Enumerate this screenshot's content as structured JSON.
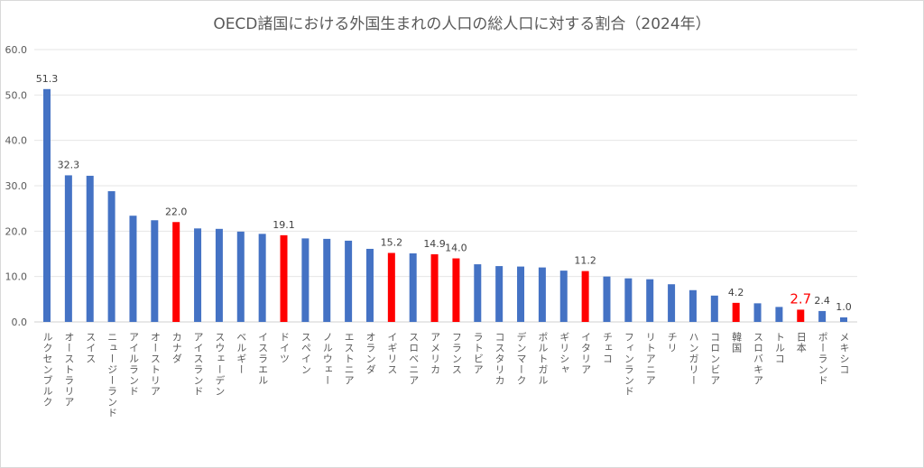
{
  "chart_data": {
    "type": "bar",
    "title": "OECD諸国における外国生まれの人口の総人口に対する割合（2024年）",
    "xlabel": "",
    "ylabel": "",
    "ylim": [
      0,
      60
    ],
    "yticks": [
      "0.0",
      "10.0",
      "20.0",
      "30.0",
      "40.0",
      "50.0",
      "60.0"
    ],
    "grid": true,
    "colors": {
      "default": "#4472C4",
      "highlight": "#FF0000",
      "japan_label": "#FF0000"
    },
    "categories": [
      "ルクセンブルク",
      "オーストラリア",
      "スイス",
      "ニュージーランド",
      "アイルランド",
      "オーストリア",
      "カナダ",
      "アイスランド",
      "スウェーデン",
      "ベルギー",
      "イスラエル",
      "ドイツ",
      "スペイン",
      "ノルウェー",
      "エストニア",
      "オランダ",
      "イギリス",
      "スロベニア",
      "アメリカ",
      "フランス",
      "ラトビア",
      "コスタリカ",
      "デンマーク",
      "ポルトガル",
      "ギリシャ",
      "イタリア",
      "チェコ",
      "フィンランド",
      "リトアニア",
      "チリ",
      "ハンガリー",
      "コロンビア",
      "韓国",
      "スロバキア",
      "トルコ",
      "日本",
      "ポーランド",
      "メキシコ"
    ],
    "values": [
      51.3,
      32.3,
      32.2,
      28.8,
      23.4,
      22.4,
      22.0,
      20.6,
      20.5,
      19.9,
      19.4,
      19.1,
      18.4,
      18.3,
      17.9,
      16.1,
      15.2,
      15.1,
      14.9,
      14.0,
      12.7,
      12.3,
      12.2,
      12.0,
      11.3,
      11.2,
      10.0,
      9.6,
      9.4,
      8.3,
      7.0,
      5.8,
      4.2,
      4.1,
      3.3,
      2.7,
      2.4,
      1.0
    ],
    "highlighted": [
      "カナダ",
      "ドイツ",
      "イギリス",
      "アメリカ",
      "フランス",
      "イタリア",
      "韓国",
      "日本"
    ],
    "data_labels": {
      "ルクセンブルク": "51.3",
      "オーストラリア": "32.3",
      "カナダ": "22.0",
      "ドイツ": "19.1",
      "イギリス": "15.2",
      "アメリカ": "14.9",
      "フランス": "14.0",
      "イタリア": "11.2",
      "韓国": "4.2",
      "日本": "2.7",
      "ポーランド": "2.4",
      "メキシコ": "1.0"
    }
  }
}
